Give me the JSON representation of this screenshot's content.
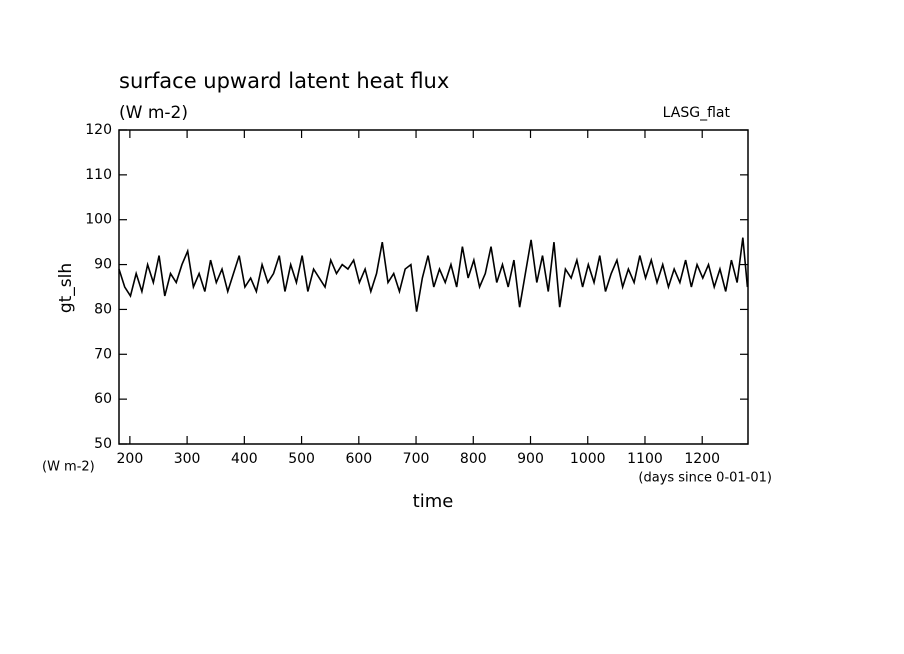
{
  "chart_data": {
    "type": "line",
    "title": "surface upward latent heat flux",
    "subtitle": "(W m-2)",
    "annotation": "LASG_flat",
    "y_units": "(W m-2)",
    "x_units": "(days since 0-01-01)",
    "xlabel": "time",
    "ylabel": "gt_slh",
    "x": [
      181,
      191,
      201,
      211,
      221,
      231,
      241,
      251,
      261,
      271,
      281,
      291,
      301,
      311,
      321,
      331,
      341,
      351,
      361,
      371,
      381,
      391,
      401,
      411,
      421,
      431,
      441,
      451,
      461,
      471,
      481,
      491,
      501,
      511,
      521,
      531,
      541,
      551,
      561,
      571,
      581,
      591,
      601,
      611,
      621,
      631,
      641,
      651,
      661,
      671,
      681,
      691,
      701,
      711,
      721,
      731,
      741,
      751,
      761,
      771,
      781,
      791,
      801,
      811,
      821,
      831,
      841,
      851,
      861,
      871,
      881,
      891,
      901,
      911,
      921,
      931,
      941,
      951,
      961,
      971,
      981,
      991,
      1001,
      1011,
      1021,
      1031,
      1041,
      1051,
      1061,
      1071,
      1081,
      1091,
      1101,
      1111,
      1121,
      1131,
      1141,
      1151,
      1161,
      1171,
      1181,
      1191,
      1201,
      1211,
      1221,
      1231,
      1241,
      1251,
      1261,
      1271,
      1279
    ],
    "series": [
      {
        "name": "gt_slh",
        "color": "#000000",
        "values": [
          89,
          85,
          83,
          88,
          84,
          90,
          86,
          92,
          83,
          88,
          86,
          90,
          93,
          85,
          88,
          84,
          91,
          86,
          89,
          84,
          88,
          92,
          85,
          87,
          84,
          90,
          86,
          88,
          92,
          84,
          90,
          86,
          92,
          84,
          89,
          87,
          85,
          91,
          88,
          90,
          89,
          91,
          86,
          89,
          84,
          88,
          95,
          86,
          88,
          84,
          89,
          90,
          79.5,
          87,
          92,
          85,
          89,
          86,
          90,
          85,
          94,
          87,
          91,
          85,
          88,
          94,
          86,
          90,
          85,
          91,
          80.5,
          88,
          95.5,
          86,
          92,
          84,
          95,
          80.5,
          89,
          87,
          91,
          85,
          90,
          86,
          92,
          84,
          88,
          91,
          85,
          89,
          86,
          92,
          87,
          91,
          86,
          90,
          85,
          89,
          86,
          91,
          85,
          90,
          87,
          90,
          85,
          89,
          84,
          91,
          86,
          96,
          85
        ]
      }
    ],
    "xlim": [
      181,
      1280
    ],
    "ylim": [
      50,
      120
    ],
    "xticks": [
      200,
      300,
      400,
      500,
      600,
      700,
      800,
      900,
      1000,
      1100,
      1200
    ],
    "yticks": [
      50,
      60,
      70,
      80,
      90,
      100,
      110,
      120
    ]
  }
}
